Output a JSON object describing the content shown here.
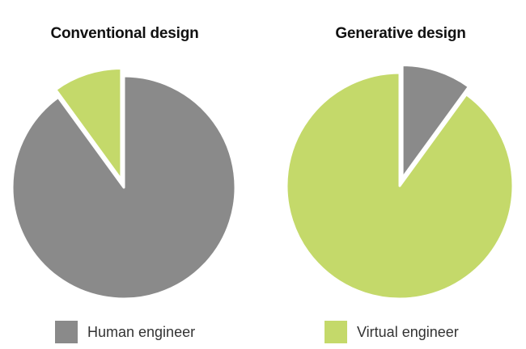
{
  "chart_data": [
    {
      "type": "pie",
      "title": "Conventional design",
      "start": "top",
      "direction": "counterclockwise",
      "slices": [
        {
          "label": "Virtual engineer",
          "value": 10,
          "color": "#c4d96a",
          "exploded": true
        },
        {
          "label": "Human engineer",
          "value": 90,
          "color": "#8a8a8a",
          "exploded": false
        }
      ]
    },
    {
      "type": "pie",
      "title": "Generative design",
      "start": "top",
      "direction": "clockwise",
      "slices": [
        {
          "label": "Human engineer",
          "value": 10,
          "color": "#8a8a8a",
          "exploded": true
        },
        {
          "label": "Virtual engineer",
          "value": 90,
          "color": "#c4d96a",
          "exploded": false
        }
      ]
    }
  ],
  "legend": [
    {
      "label": "Human engineer",
      "color": "#8a8a8a"
    },
    {
      "label": "Virtual engineer",
      "color": "#c4d96a"
    }
  ]
}
